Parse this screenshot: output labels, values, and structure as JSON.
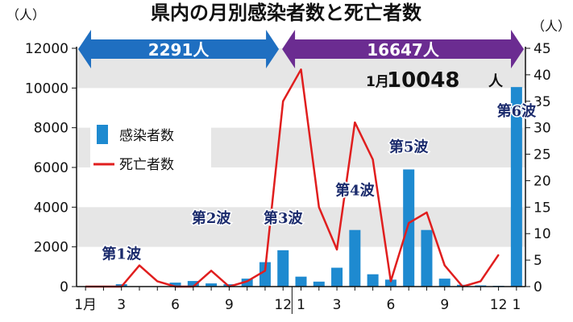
{
  "chart_data": {
    "type": "bar",
    "title": "県内の月別感染者数と死亡者数",
    "y_unit_left": "（人）",
    "y_unit_right": "（人）",
    "ylim_left": [
      0,
      12000
    ],
    "ylim_right": [
      0,
      45
    ],
    "yticks_left": [
      "0",
      "2000",
      "4000",
      "6000",
      "8000",
      "10000",
      "12000"
    ],
    "yticks_right": [
      "0",
      "5",
      "10",
      "15",
      "20",
      "25",
      "30",
      "35",
      "40",
      "45"
    ],
    "x_tick_labels": [
      {
        "index": 0,
        "label": "1月"
      },
      {
        "index": 2,
        "label": "3"
      },
      {
        "index": 5,
        "label": "6"
      },
      {
        "index": 8,
        "label": "9"
      },
      {
        "index": 11,
        "label": "12"
      },
      {
        "index": 12,
        "label": "1"
      },
      {
        "index": 14,
        "label": "3"
      },
      {
        "index": 17,
        "label": "6"
      },
      {
        "index": 20,
        "label": "9"
      },
      {
        "index": 23,
        "label": "12"
      },
      {
        "index": 24,
        "label": "1"
      }
    ],
    "series": [
      {
        "name": "感染者数",
        "axis": "left",
        "kind": "bar",
        "color": "#1e8ad0",
        "values": [
          5,
          30,
          120,
          20,
          10,
          200,
          280,
          160,
          120,
          400,
          1230,
          1830,
          500,
          250,
          950,
          2850,
          620,
          350,
          5900,
          2850,
          400,
          90,
          60,
          40,
          10048
        ]
      },
      {
        "name": "死亡者数",
        "axis": "right",
        "kind": "line",
        "color": "#e01e1e",
        "values": [
          0,
          0,
          0,
          4,
          1,
          0,
          0,
          3,
          0,
          1,
          3,
          35,
          41,
          15,
          7,
          31,
          24,
          1,
          12,
          14,
          4,
          0,
          1,
          6
        ]
      }
    ],
    "legend": {
      "placement": "upper-left",
      "items": [
        {
          "label": "感染者数",
          "kind": "bar"
        },
        {
          "label": "死亡者数",
          "kind": "line"
        }
      ]
    },
    "period_banners": [
      {
        "label": "2291人",
        "color": "#1f6fc1"
      },
      {
        "label": "16647人",
        "color": "#6b2c91"
      }
    ],
    "annotations": [
      {
        "label": "第1波",
        "index": 2,
        "axis": "left",
        "value": 1400
      },
      {
        "label": "第2波",
        "index": 7,
        "axis": "left",
        "value": 3200
      },
      {
        "label": "第3波",
        "index": 11,
        "axis": "left",
        "value": 3200
      },
      {
        "label": "第4波",
        "index": 15,
        "axis": "left",
        "value": 4600
      },
      {
        "label": "第5波",
        "index": 18,
        "axis": "left",
        "value": 6800
      },
      {
        "label": "第6波",
        "index": 24,
        "axis": "left",
        "value": 8600
      }
    ],
    "callout": {
      "month": "1月",
      "value": "10048",
      "unit": "人"
    },
    "grid": "horizontal bands"
  }
}
